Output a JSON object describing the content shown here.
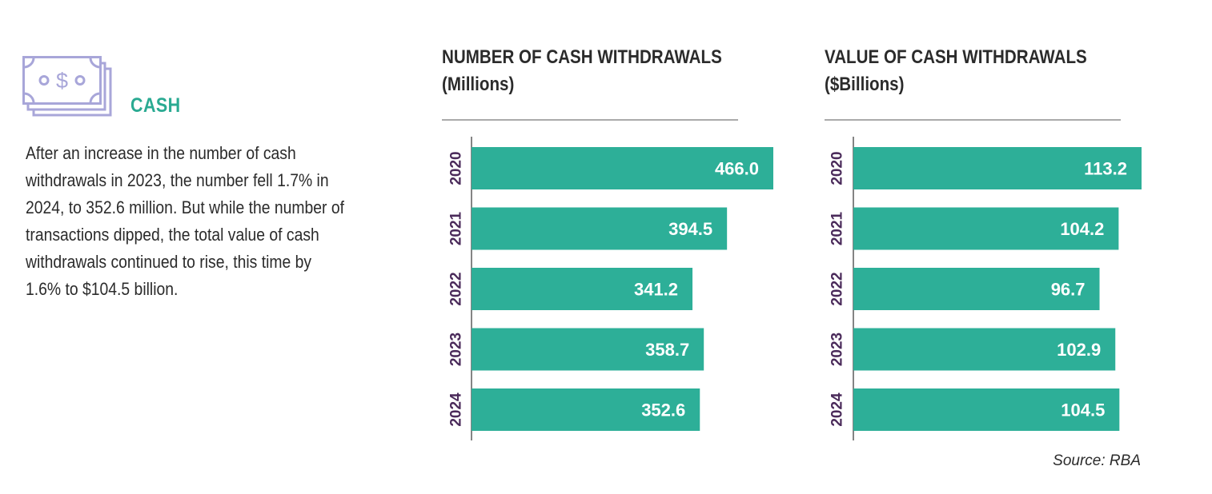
{
  "icon": {
    "name": "cash-icon",
    "symbol": "o$o"
  },
  "section": {
    "title": "CASH",
    "description": "After an increase in the number of cash withdrawals in 2023, the number fell 1.7% in 2024, to 352.6 million. But while the number of transactions dipped, the total value of cash withdrawals continued to rise, this time by 1.6% to $104.5 billion."
  },
  "colors": {
    "accent": "#2aaa92",
    "bar": "#2daf98",
    "year_label": "#4a2a5a",
    "icon": "#a8a6d9",
    "rule": "#555555"
  },
  "chart_data": [
    {
      "type": "bar",
      "orientation": "horizontal",
      "title_line1": "NUMBER OF CASH WITHDRAWALS",
      "title_line2": "(Millions)",
      "categories": [
        "2020",
        "2021",
        "2022",
        "2023",
        "2024"
      ],
      "values": [
        466.0,
        394.5,
        341.2,
        358.7,
        352.6
      ],
      "labels": [
        "466.0",
        "394.5",
        "341.2",
        "358.7",
        "352.6"
      ]
    },
    {
      "type": "bar",
      "orientation": "horizontal",
      "title_line1": "VALUE OF CASH WITHDRAWALS",
      "title_line2": "($Billions)",
      "categories": [
        "2020",
        "2021",
        "2022",
        "2023",
        "2024"
      ],
      "values": [
        113.2,
        104.2,
        96.7,
        102.9,
        104.5
      ],
      "labels": [
        "113.2",
        "104.2",
        "96.7",
        "102.9",
        "104.5"
      ]
    }
  ],
  "source": "Source: RBA"
}
